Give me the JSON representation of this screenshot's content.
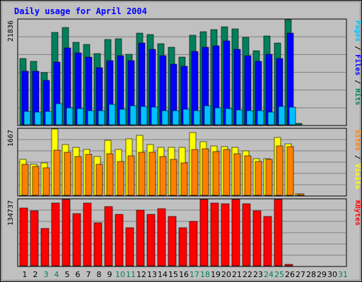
{
  "title": "Daily usage for April 2004",
  "colors": {
    "background": "#c0c0c0",
    "plot_background": "#c0c0c0",
    "grid": "#808080",
    "title": "#0000ff",
    "hits": "#00805c",
    "files": "#0000ff",
    "pages": "#00c0ff",
    "visits": "#ffff00",
    "sites": "#ff8000",
    "kbytes": "#ff0000",
    "day_weekday": "#000000",
    "day_weekend": "#00805c"
  },
  "chart_data": [
    {
      "type": "bar",
      "panel": "hits-files-pages",
      "max_label": "21836",
      "ylim": [
        0,
        21836
      ],
      "grid": true,
      "right_labels": [
        {
          "text": "Pages",
          "color": "#00c0ff"
        },
        {
          "text": " / ",
          "color": "#000000"
        },
        {
          "text": "Files",
          "color": "#0000ff"
        },
        {
          "text": " / ",
          "color": "#000000"
        },
        {
          "text": "Hits",
          "color": "#00805c"
        }
      ],
      "categories": [
        "1",
        "2",
        "3",
        "4",
        "5",
        "6",
        "7",
        "8",
        "9",
        "10",
        "11",
        "12",
        "13",
        "14",
        "15",
        "16",
        "17",
        "18",
        "19",
        "20",
        "21",
        "22",
        "23",
        "24",
        "25",
        "26",
        "27",
        "28",
        "29",
        "30",
        "31"
      ],
      "series": [
        {
          "name": "Hits",
          "color": "#00805c",
          "values": [
            13800,
            13200,
            10800,
            19200,
            20200,
            17100,
            16700,
            14800,
            17700,
            17900,
            14600,
            19100,
            18700,
            16900,
            16100,
            14100,
            18600,
            19300,
            19800,
            20300,
            20000,
            18200,
            15400,
            18400,
            17000,
            21836,
            250,
            0,
            0,
            0,
            0
          ]
        },
        {
          "name": "Files",
          "color": "#0000ff",
          "values": [
            11100,
            11200,
            9300,
            13000,
            16000,
            15000,
            14000,
            11800,
            13400,
            14300,
            13400,
            17000,
            15700,
            14300,
            12600,
            12200,
            15200,
            16100,
            16400,
            17400,
            15700,
            14400,
            13200,
            14700,
            13800,
            19000,
            0,
            0,
            0,
            0,
            0
          ]
        },
        {
          "name": "Pages",
          "color": "#00c0ff",
          "values": [
            2800,
            2700,
            2800,
            4400,
            3500,
            3300,
            3000,
            3000,
            4200,
            3200,
            3900,
            3800,
            3600,
            3000,
            3000,
            3200,
            2900,
            4000,
            3500,
            3300,
            3100,
            3000,
            2900,
            2700,
            3800,
            3600,
            0,
            0,
            0,
            0,
            0
          ]
        }
      ]
    },
    {
      "type": "bar",
      "panel": "visits-sites",
      "max_label": "1667",
      "ylim": [
        0,
        1667
      ],
      "grid": true,
      "right_labels": [
        {
          "text": "Sites",
          "color": "#ff8000"
        },
        {
          "text": " / ",
          "color": "#000000"
        },
        {
          "text": "Visits",
          "color": "#ffff00"
        }
      ],
      "categories": [
        "1",
        "2",
        "3",
        "4",
        "5",
        "6",
        "7",
        "8",
        "9",
        "10",
        "11",
        "12",
        "13",
        "14",
        "15",
        "16",
        "17",
        "18",
        "19",
        "20",
        "21",
        "22",
        "23",
        "24",
        "25",
        "26",
        "27",
        "28",
        "29",
        "30",
        "31"
      ],
      "series": [
        {
          "name": "Visits",
          "color": "#ffff00",
          "values": [
            900,
            780,
            810,
            1667,
            1280,
            1200,
            1150,
            980,
            1390,
            1160,
            1420,
            1500,
            1280,
            1200,
            1200,
            1200,
            1580,
            1350,
            1250,
            1230,
            1200,
            1110,
            930,
            920,
            1460,
            1290,
            40,
            0,
            0,
            0,
            0
          ]
        },
        {
          "name": "Sites",
          "color": "#ff8000",
          "values": [
            780,
            720,
            700,
            1130,
            1090,
            980,
            1020,
            780,
            1040,
            860,
            1000,
            1080,
            1080,
            980,
            910,
            820,
            1160,
            1170,
            1100,
            1150,
            1040,
            1000,
            860,
            900,
            1250,
            1230,
            30,
            0,
            0,
            0,
            0
          ]
        }
      ]
    },
    {
      "type": "bar",
      "panel": "kbytes",
      "max_label": "134737",
      "ylim": [
        0,
        134737
      ],
      "grid": true,
      "right_labels": [
        {
          "text": "KBytes",
          "color": "#ff0000"
        }
      ],
      "categories": [
        "1",
        "2",
        "3",
        "4",
        "5",
        "6",
        "7",
        "8",
        "9",
        "10",
        "11",
        "12",
        "13",
        "14",
        "15",
        "16",
        "17",
        "18",
        "19",
        "20",
        "21",
        "22",
        "23",
        "24",
        "25",
        "26",
        "27",
        "28",
        "29",
        "30",
        "31"
      ],
      "series": [
        {
          "name": "KBytes",
          "color": "#ff0000",
          "values": [
            118000,
            112000,
            76000,
            128000,
            134737,
            106000,
            128000,
            88000,
            120000,
            104000,
            78000,
            113000,
            105000,
            116000,
            101000,
            78000,
            90000,
            134737,
            127000,
            126000,
            134737,
            126000,
            112000,
            100000,
            134737,
            2000,
            0,
            0,
            0,
            0,
            0
          ]
        }
      ]
    }
  ],
  "days": [
    {
      "label": "1",
      "weekend": false
    },
    {
      "label": "2",
      "weekend": false
    },
    {
      "label": "3",
      "weekend": true
    },
    {
      "label": "4",
      "weekend": true
    },
    {
      "label": "5",
      "weekend": false
    },
    {
      "label": "6",
      "weekend": false
    },
    {
      "label": "7",
      "weekend": false
    },
    {
      "label": "8",
      "weekend": false
    },
    {
      "label": "9",
      "weekend": false
    },
    {
      "label": "10",
      "weekend": true
    },
    {
      "label": "11",
      "weekend": true
    },
    {
      "label": "12",
      "weekend": false
    },
    {
      "label": "13",
      "weekend": false
    },
    {
      "label": "14",
      "weekend": false
    },
    {
      "label": "15",
      "weekend": false
    },
    {
      "label": "16",
      "weekend": false
    },
    {
      "label": "17",
      "weekend": true
    },
    {
      "label": "18",
      "weekend": true
    },
    {
      "label": "19",
      "weekend": false
    },
    {
      "label": "20",
      "weekend": false
    },
    {
      "label": "21",
      "weekend": false
    },
    {
      "label": "22",
      "weekend": false
    },
    {
      "label": "23",
      "weekend": false
    },
    {
      "label": "24",
      "weekend": true
    },
    {
      "label": "25",
      "weekend": true
    },
    {
      "label": "26",
      "weekend": false
    },
    {
      "label": "27",
      "weekend": false
    },
    {
      "label": "28",
      "weekend": false
    },
    {
      "label": "29",
      "weekend": false
    },
    {
      "label": "30",
      "weekend": false
    },
    {
      "label": "31",
      "weekend": true
    }
  ]
}
